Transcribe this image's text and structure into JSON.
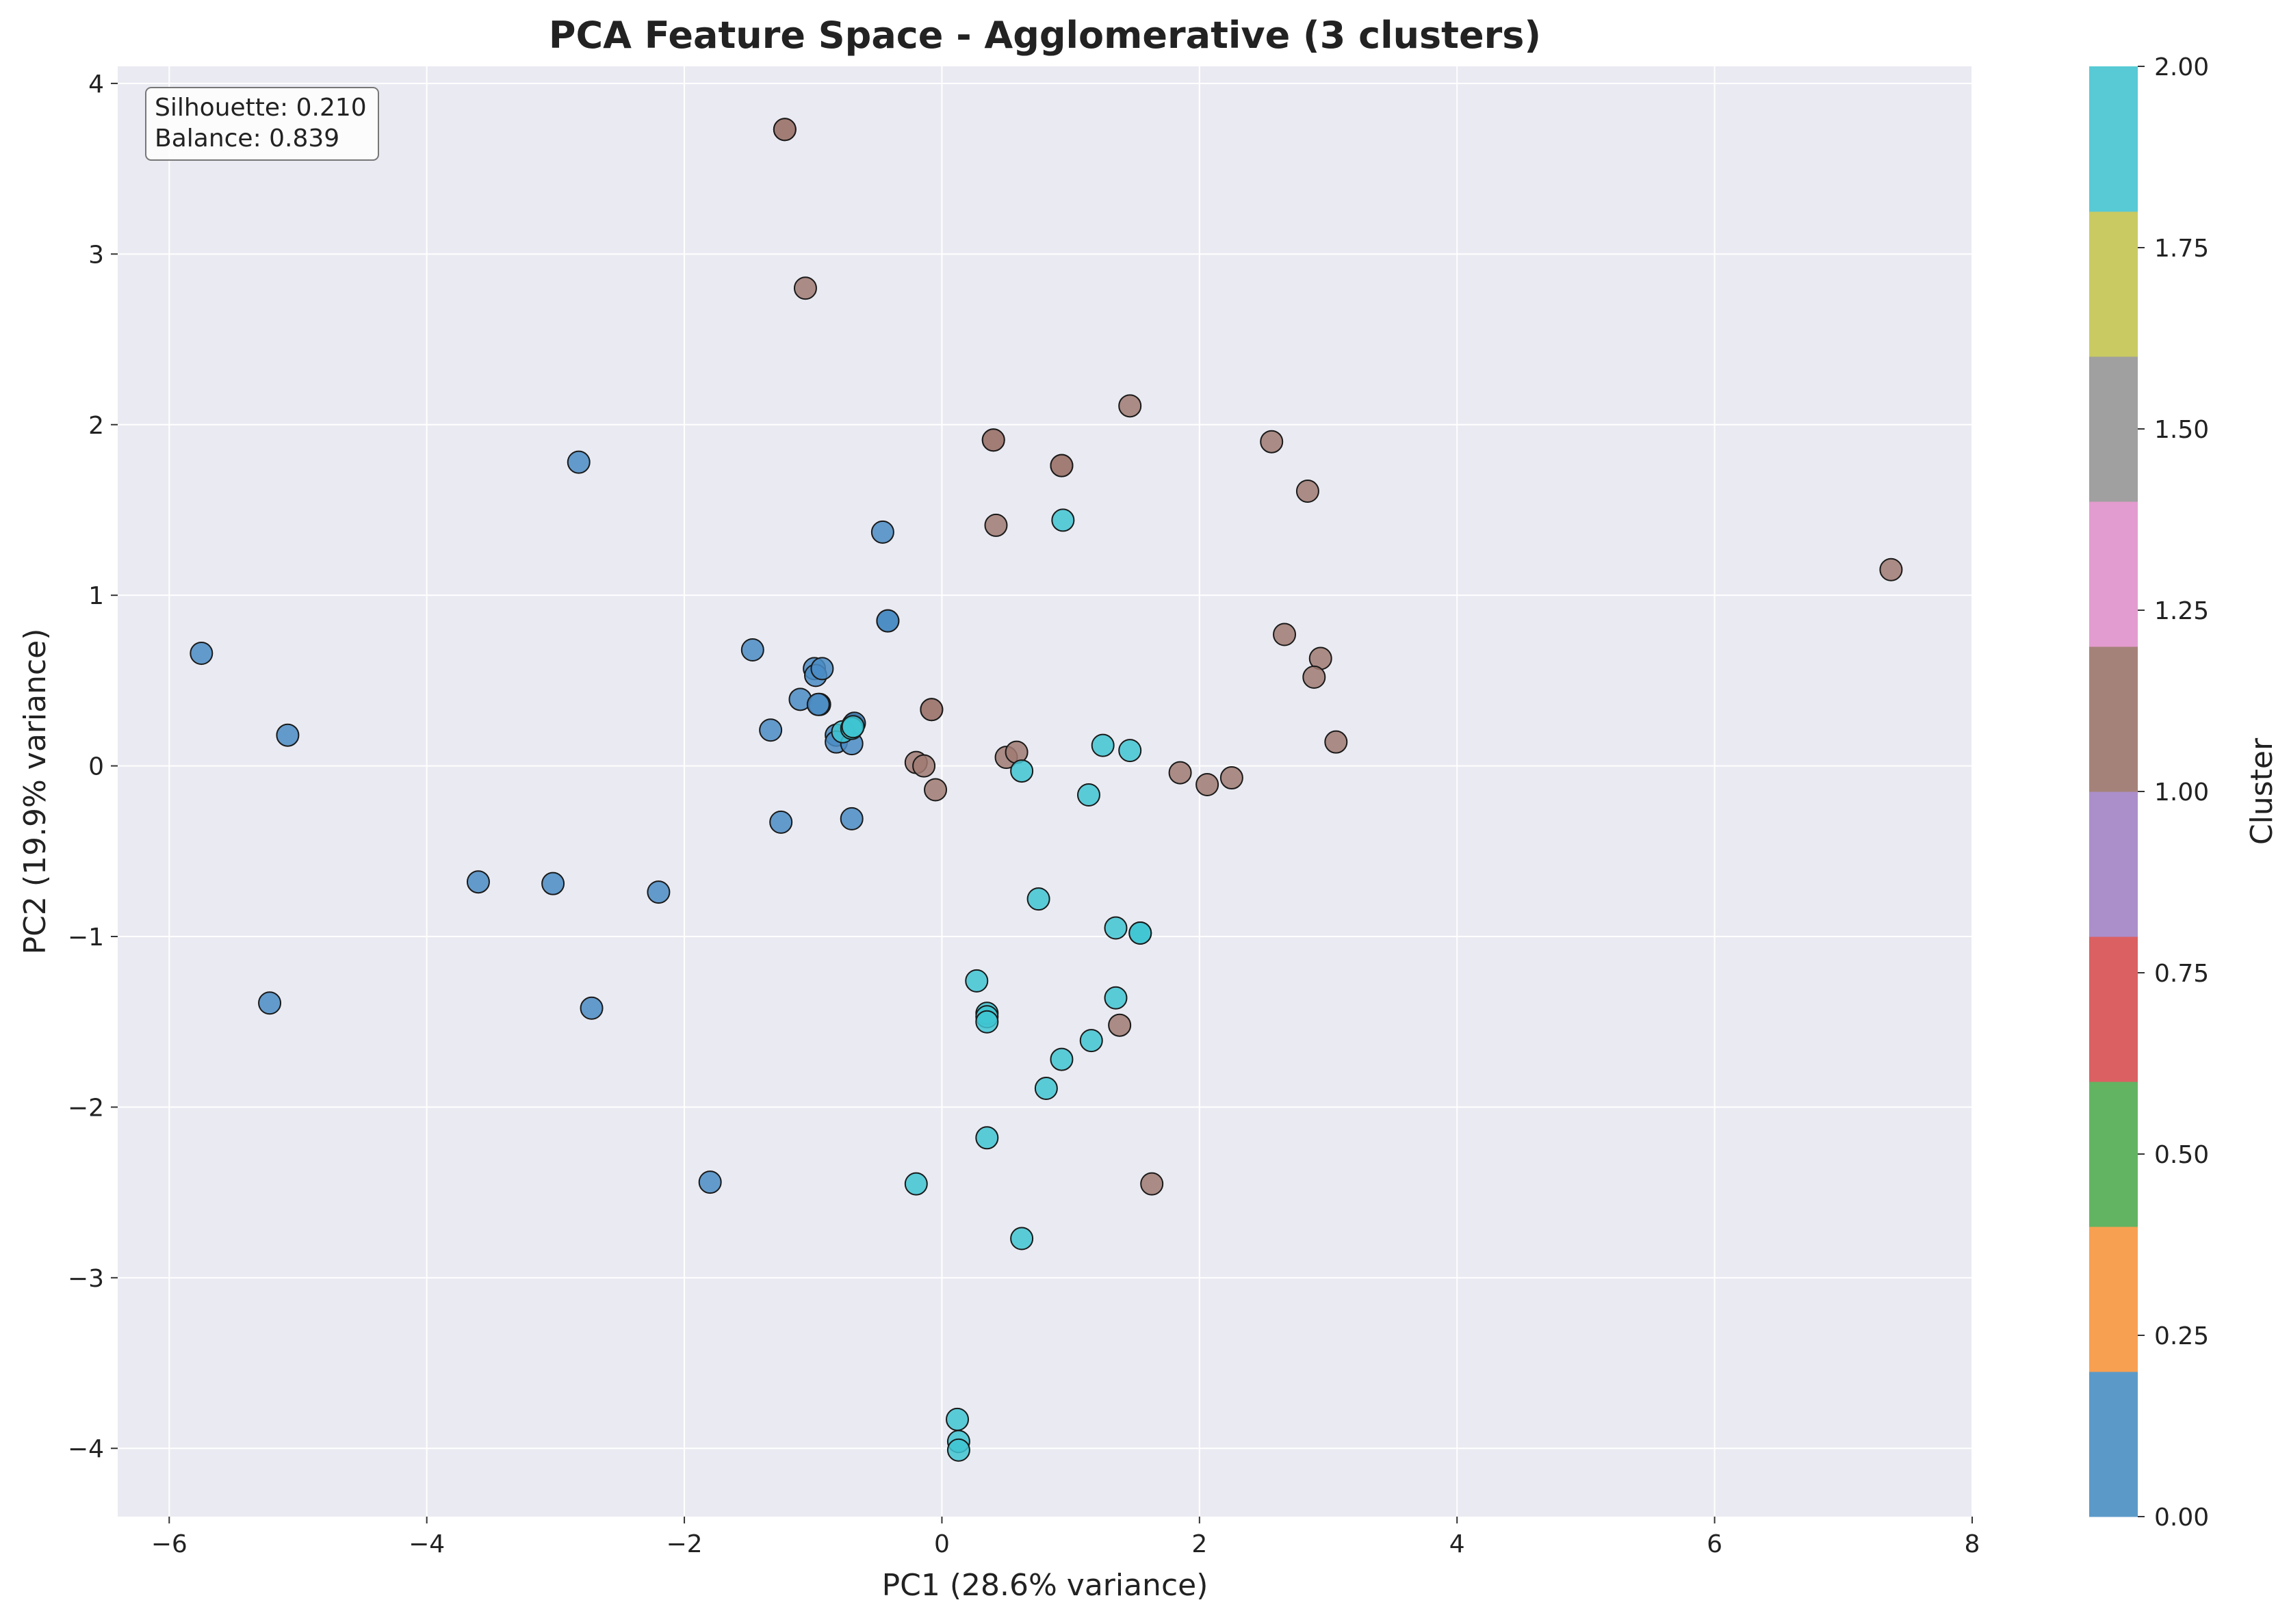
{
  "chart_data": {
    "type": "scatter",
    "title": "PCA Feature Space - Agglomerative (3 clusters)",
    "xlabel": "PC1 (28.6% variance)",
    "ylabel": "PC2 (19.9% variance)",
    "xlim": [
      -6.4,
      8.0
    ],
    "ylim": [
      -4.4,
      4.1
    ],
    "xticks": [
      -6,
      -4,
      -2,
      0,
      2,
      4,
      6,
      8
    ],
    "xtick_labels": [
      "−6",
      "−4",
      "−2",
      "0",
      "2",
      "4",
      "6",
      "8"
    ],
    "yticks": [
      -4,
      -3,
      -2,
      -1,
      0,
      1,
      2,
      3,
      4
    ],
    "ytick_labels": [
      "−4",
      "−3",
      "−2",
      "−1",
      "0",
      "1",
      "2",
      "3",
      "4"
    ],
    "grid": true,
    "background": "#eaeaf2",
    "annotation": [
      "Silhouette: 0.210",
      "Balance: 0.839"
    ],
    "colorbar": {
      "label": "Cluster",
      "range": [
        0,
        2
      ],
      "ticks": [
        0,
        0.25,
        0.5,
        0.75,
        1.0,
        1.25,
        1.5,
        1.75,
        2.0
      ],
      "tick_labels": [
        "0.00",
        "0.25",
        "0.50",
        "0.75",
        "1.00",
        "1.25",
        "1.50",
        "1.75",
        "2.00"
      ],
      "colors": [
        "#5b9ac8",
        "#f8a051",
        "#63b462",
        "#db6062",
        "#ab8fcb",
        "#a58279",
        "#e39ccf",
        "#a0a0a0",
        "#c9ca62",
        "#57cad6"
      ]
    },
    "cluster_colors": [
      "#4a8cc4",
      "#a07a72",
      "#3fc6d2"
    ],
    "series": [
      {
        "values": [
          [
            -5.75,
            0.66
          ],
          [
            -5.08,
            0.18
          ],
          [
            -5.22,
            -1.39
          ],
          [
            -3.6,
            -0.68
          ],
          [
            -3.02,
            -0.69
          ],
          [
            -2.72,
            -1.42
          ],
          [
            -2.2,
            -0.74
          ],
          [
            -1.8,
            -2.44
          ],
          [
            -2.82,
            1.78
          ],
          [
            -1.47,
            0.68
          ],
          [
            -1.33,
            0.21
          ],
          [
            -1.25,
            -0.33
          ],
          [
            -1.1,
            0.39
          ],
          [
            -0.99,
            0.57
          ],
          [
            -0.98,
            0.53
          ],
          [
            -0.93,
            0.57
          ],
          [
            -0.95,
            0.36
          ],
          [
            -0.96,
            0.36
          ],
          [
            -0.82,
            0.18
          ],
          [
            -0.82,
            0.14
          ],
          [
            -0.69,
            0.24
          ],
          [
            -0.68,
            0.25
          ],
          [
            -0.7,
            0.13
          ],
          [
            -0.7,
            -0.31
          ],
          [
            -0.46,
            1.37
          ],
          [
            -0.42,
            0.85
          ],
          [
            -0.42,
            0.85
          ]
        ]
      },
      {
        "values": [
          [
            -1.22,
            3.73
          ],
          [
            -1.22,
            3.73
          ],
          [
            -1.06,
            2.8
          ],
          [
            0.4,
            1.91
          ],
          [
            0.4,
            1.91
          ],
          [
            0.93,
            1.76
          ],
          [
            0.93,
            1.76
          ],
          [
            1.46,
            2.11
          ],
          [
            2.56,
            1.9
          ],
          [
            2.84,
            1.61
          ],
          [
            0.42,
            1.41
          ],
          [
            7.37,
            1.15
          ],
          [
            2.66,
            0.77
          ],
          [
            2.94,
            0.63
          ],
          [
            2.89,
            0.52
          ],
          [
            3.06,
            0.14
          ],
          [
            -0.08,
            0.33
          ],
          [
            -0.08,
            0.33
          ],
          [
            -0.2,
            0.02
          ],
          [
            -0.14,
            0.0
          ],
          [
            -0.05,
            -0.14
          ],
          [
            0.5,
            0.05
          ],
          [
            0.58,
            0.08
          ],
          [
            1.85,
            -0.04
          ],
          [
            2.06,
            -0.11
          ],
          [
            2.25,
            -0.07
          ],
          [
            1.38,
            -1.52
          ],
          [
            1.63,
            -2.45
          ]
        ]
      },
      {
        "values": [
          [
            0.94,
            1.44
          ],
          [
            -0.77,
            0.2
          ],
          [
            -0.7,
            0.22
          ],
          [
            -0.69,
            0.23
          ],
          [
            0.62,
            -0.03
          ],
          [
            1.25,
            0.12
          ],
          [
            1.46,
            0.09
          ],
          [
            1.14,
            -0.17
          ],
          [
            0.75,
            -0.78
          ],
          [
            1.35,
            -0.95
          ],
          [
            1.54,
            -0.98
          ],
          [
            1.54,
            -0.98
          ],
          [
            0.27,
            -1.26
          ],
          [
            0.35,
            -1.45
          ],
          [
            0.35,
            -1.47
          ],
          [
            0.35,
            -1.5
          ],
          [
            1.35,
            -1.36
          ],
          [
            1.16,
            -1.61
          ],
          [
            0.93,
            -1.72
          ],
          [
            0.81,
            -1.89
          ],
          [
            0.35,
            -2.18
          ],
          [
            -0.2,
            -2.45
          ],
          [
            0.62,
            -2.77
          ],
          [
            0.12,
            -3.83
          ],
          [
            0.13,
            -3.96
          ],
          [
            0.13,
            -4.01
          ]
        ]
      }
    ]
  }
}
